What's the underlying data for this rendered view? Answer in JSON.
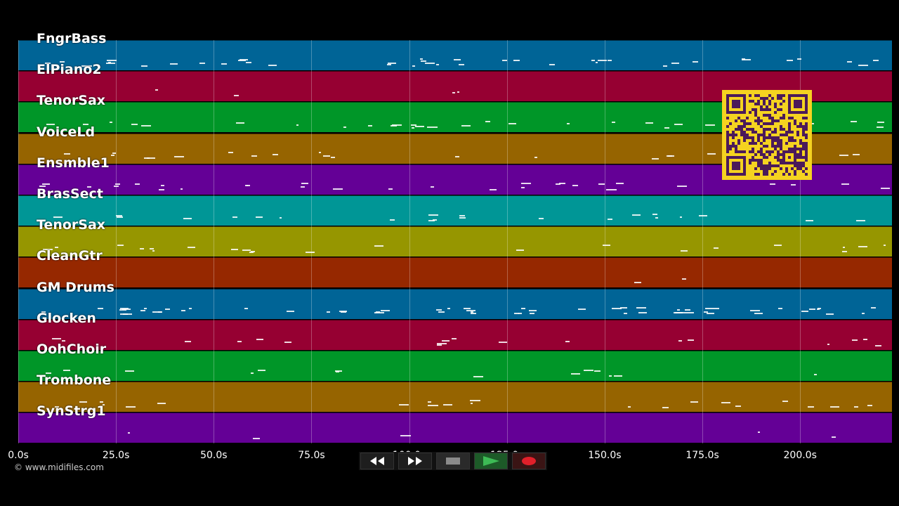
{
  "tracks": [
    {
      "name": "FngrBass",
      "color": "#006496"
    },
    {
      "name": "ElPiano2",
      "color": "#960032"
    },
    {
      "name": "TenorSax",
      "color": "#009628"
    },
    {
      "name": "VoiceLd",
      "color": "#966400"
    },
    {
      "name": "Ensmble1",
      "color": "#640096"
    },
    {
      "name": "BrasSect",
      "color": "#009696"
    },
    {
      "name": "TenorSax",
      "color": "#969600"
    },
    {
      "name": "CleanGtr",
      "color": "#962800"
    },
    {
      "name": "GM Drums",
      "color": "#006496"
    },
    {
      "name": "Glocken",
      "color": "#960032"
    },
    {
      "name": "OohChoir",
      "color": "#009628"
    },
    {
      "name": "Trombone",
      "color": "#966400"
    },
    {
      "name": "SynStrg1",
      "color": "#640096"
    }
  ],
  "timeline": {
    "ticks": [
      "0.0s",
      "25.0s",
      "50.0s",
      "75.0s",
      "100.0s",
      "125.0s",
      "150.0s",
      "175.0s",
      "200.0s"
    ],
    "tick_values": [
      0,
      25,
      50,
      75,
      100,
      125,
      150,
      175,
      200
    ],
    "range_seconds": [
      0,
      223.5
    ]
  },
  "copyright": "© www.midifiles.com",
  "transport": {
    "rewind_icon": "rewind-icon",
    "forward_icon": "fast-forward-icon",
    "stop_icon": "stop-icon",
    "play_icon": "play-icon",
    "record_icon": "record-icon"
  },
  "qr_icon": "qr-code-icon"
}
